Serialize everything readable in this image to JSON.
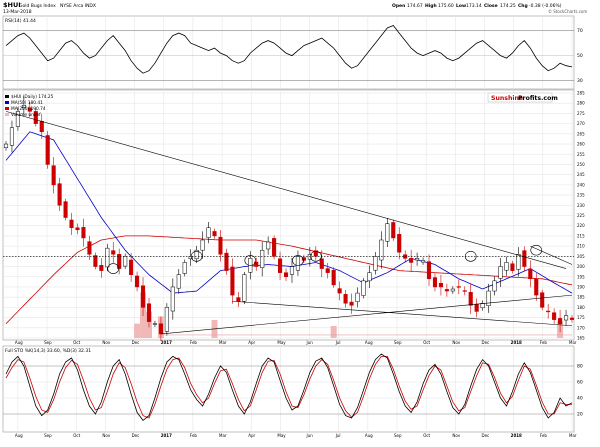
{
  "header": {
    "symbol": "$HUI",
    "name": "Gold Bugs Index",
    "exchange": "NYSE Arca INDX",
    "date": "13-Mar-2018",
    "ohlc": {
      "open_label": "Open",
      "open": "174.67",
      "high_label": "High",
      "high": "175.60",
      "low_label": "Low",
      "low": "173.14",
      "close_label": "Close",
      "close": "174.25",
      "chg_label": "Chg",
      "chg": "-0.38 (-0.06%)"
    },
    "copyright": "© StockCharts.com"
  },
  "watermark": {
    "part1": "Sunshine",
    "part2": "Profits.com"
  },
  "legend": {
    "main": "$HUI (Daily) 174.25",
    "ma1": "MA(50) 180.41",
    "ma2": "MA(200) 190.74",
    "vol": "Volume undef"
  },
  "rsi_panel": {
    "label": "RSI(14) 41.44",
    "scale": [
      "70",
      "50",
      "30"
    ]
  },
  "stoch_panel": {
    "label": "Full STO %K(14,3) 33.60, %D(3) 32.31",
    "scale": [
      "80",
      "60",
      "40",
      "20"
    ]
  },
  "x_axis": [
    "Aug",
    "Sep",
    "Oct",
    "Nov",
    "Dec",
    "2017",
    "Feb",
    "Mar",
    "Apr",
    "May",
    "Jun",
    "Jul",
    "Aug",
    "Sep",
    "Oct",
    "Nov",
    "Dec",
    "2018",
    "Feb",
    "Mar"
  ],
  "bold_ticks": [
    "2017",
    "2018"
  ],
  "colors": {
    "up": "#000000",
    "down": "#cc0000",
    "ma50": "#0000cc",
    "ma200": "#cc0000",
    "trendline": "#000000",
    "ellipse": "#000000",
    "volume": "#f2b8b8",
    "sto_k": "#000000",
    "sto_d": "#cc0000",
    "grid": "#e6e6e6",
    "support": "#e0a0a0"
  },
  "chart_data": [
    {
      "type": "candlestick",
      "title": "$HUI Gold Bugs Index NYSE Arca INDX",
      "ylim": [
        165,
        285
      ],
      "yticks": [
        "285",
        "280",
        "275",
        "270",
        "265",
        "260",
        "255",
        "250",
        "245",
        "240",
        "235",
        "230",
        "225",
        "220",
        "215",
        "210",
        "205",
        "200",
        "195",
        "190",
        "185",
        "180",
        "175",
        "170",
        "165"
      ],
      "x_labels": [
        "Aug",
        "Sep",
        "Oct",
        "Nov",
        "Dec",
        "2017",
        "Feb",
        "Mar",
        "Apr",
        "May",
        "Jun",
        "Jul",
        "Aug",
        "Sep",
        "Oct",
        "Nov",
        "Dec",
        "2018",
        "Feb",
        "Mar"
      ],
      "close_path": [
        [
          0,
          260
        ],
        [
          2,
          276
        ],
        [
          3,
          279
        ],
        [
          4,
          276
        ],
        [
          5,
          270
        ],
        [
          6,
          266
        ],
        [
          7,
          250
        ],
        [
          8,
          240
        ],
        [
          9,
          230
        ],
        [
          10,
          224
        ],
        [
          11,
          219
        ],
        [
          12,
          218
        ],
        [
          13,
          214
        ],
        [
          14,
          206
        ],
        [
          15,
          200
        ],
        [
          16,
          198
        ],
        [
          17,
          209
        ],
        [
          18,
          206
        ],
        [
          19,
          199
        ],
        [
          20,
          205
        ],
        [
          21,
          196
        ],
        [
          22,
          190
        ],
        [
          23,
          180
        ],
        [
          24,
          173
        ],
        [
          25,
          172
        ],
        [
          26,
          167
        ],
        [
          27,
          180
        ],
        [
          28,
          190
        ],
        [
          29,
          196
        ],
        [
          30,
          202
        ],
        [
          31,
          205
        ],
        [
          32,
          208
        ],
        [
          33,
          213
        ],
        [
          34,
          219
        ],
        [
          35,
          215
        ],
        [
          36,
          206
        ],
        [
          37,
          198
        ],
        [
          38,
          186
        ],
        [
          39,
          183
        ],
        [
          40,
          196
        ],
        [
          41,
          204
        ],
        [
          42,
          200
        ],
        [
          43,
          208
        ],
        [
          44,
          212
        ],
        [
          45,
          205
        ],
        [
          46,
          197
        ],
        [
          47,
          195
        ],
        [
          48,
          200
        ],
        [
          49,
          205
        ],
        [
          50,
          203
        ],
        [
          51,
          206
        ],
        [
          52,
          205
        ],
        [
          53,
          199
        ],
        [
          54,
          197
        ],
        [
          55,
          191
        ],
        [
          56,
          187
        ],
        [
          57,
          182
        ],
        [
          58,
          181
        ],
        [
          59,
          187
        ],
        [
          60,
          193
        ],
        [
          61,
          197
        ],
        [
          62,
          205
        ],
        [
          63,
          213
        ],
        [
          64,
          221
        ],
        [
          65,
          214
        ],
        [
          66,
          207
        ],
        [
          67,
          204
        ],
        [
          68,
          202
        ],
        [
          69,
          204
        ],
        [
          70,
          203
        ],
        [
          71,
          194
        ],
        [
          72,
          190
        ],
        [
          73,
          190
        ],
        [
          74,
          188
        ],
        [
          75,
          189
        ],
        [
          76,
          190
        ],
        [
          77,
          188
        ],
        [
          78,
          181
        ],
        [
          79,
          178
        ],
        [
          80,
          182
        ],
        [
          81,
          188
        ],
        [
          82,
          193
        ],
        [
          83,
          200
        ],
        [
          84,
          202
        ],
        [
          85,
          198
        ],
        [
          86,
          206
        ],
        [
          87,
          200
        ],
        [
          88,
          194
        ],
        [
          89,
          186
        ],
        [
          90,
          180
        ],
        [
          91,
          178
        ],
        [
          92,
          174
        ],
        [
          93,
          172
        ],
        [
          94,
          176
        ],
        [
          95,
          174
        ]
      ],
      "ma50": [
        [
          0,
          252
        ],
        [
          4,
          266
        ],
        [
          8,
          262
        ],
        [
          12,
          243
        ],
        [
          16,
          224
        ],
        [
          20,
          208
        ],
        [
          24,
          196
        ],
        [
          28,
          187
        ],
        [
          32,
          188
        ],
        [
          36,
          198
        ],
        [
          40,
          200
        ],
        [
          44,
          201
        ],
        [
          48,
          200
        ],
        [
          52,
          202
        ],
        [
          56,
          198
        ],
        [
          60,
          192
        ],
        [
          64,
          197
        ],
        [
          68,
          204
        ],
        [
          72,
          201
        ],
        [
          76,
          194
        ],
        [
          80,
          189
        ],
        [
          84,
          194
        ],
        [
          88,
          199
        ],
        [
          92,
          192
        ],
        [
          95,
          187
        ]
      ],
      "ma200": [
        [
          0,
          172
        ],
        [
          8,
          196
        ],
        [
          12,
          207
        ],
        [
          16,
          213
        ],
        [
          20,
          215
        ],
        [
          24,
          215
        ],
        [
          30,
          214
        ],
        [
          36,
          213
        ],
        [
          42,
          213
        ],
        [
          48,
          210
        ],
        [
          54,
          206
        ],
        [
          60,
          202
        ],
        [
          66,
          198
        ],
        [
          72,
          197
        ],
        [
          78,
          196
        ],
        [
          84,
          195
        ],
        [
          90,
          194
        ],
        [
          95,
          191
        ]
      ],
      "volume_spikes": [
        [
          22,
          12
        ],
        [
          23,
          38
        ],
        [
          24,
          22
        ],
        [
          26,
          18
        ],
        [
          35,
          15
        ],
        [
          55,
          10
        ],
        [
          93,
          14
        ]
      ],
      "trendlines": [
        {
          "from": [
            0,
            276
          ],
          "to": [
            94,
            199
          ]
        },
        {
          "from": [
            26,
            167
          ],
          "to": [
            95,
            186
          ]
        },
        {
          "from": [
            38,
            183
          ],
          "to": [
            95,
            171
          ]
        },
        {
          "from": [
            88,
            210
          ],
          "to": [
            95,
            201
          ]
        }
      ],
      "hlines": [
        {
          "y": 205,
          "style": "dotted"
        },
        {
          "y": 166.5,
          "style": "support"
        }
      ],
      "ellipses": [
        [
          18,
          199
        ],
        [
          32,
          205
        ],
        [
          41,
          203
        ],
        [
          49,
          203
        ],
        [
          52,
          205
        ],
        [
          78,
          205
        ],
        [
          89,
          208
        ]
      ]
    },
    {
      "type": "line",
      "title": "RSI(14) 41.44",
      "ylim": [
        25,
        80
      ],
      "yticks": [
        "70",
        "50",
        "30"
      ],
      "series": [
        {
          "name": "RSI(14)",
          "values": [
            58,
            62,
            66,
            68,
            64,
            58,
            52,
            46,
            48,
            54,
            60,
            62,
            58,
            52,
            48,
            50,
            56,
            62,
            66,
            60,
            54,
            46,
            40,
            36,
            38,
            44,
            52,
            60,
            66,
            68,
            66,
            60,
            58,
            56,
            54,
            56,
            52,
            50,
            46,
            44,
            46,
            52,
            56,
            60,
            62,
            60,
            56,
            52,
            50,
            54,
            58,
            60,
            62,
            64,
            60,
            56,
            50,
            44,
            40,
            42,
            48,
            54,
            60,
            66,
            72,
            74,
            68,
            62,
            56,
            52,
            50,
            52,
            54,
            52,
            48,
            46,
            48,
            52,
            56,
            60,
            62,
            58,
            54,
            50,
            48,
            52,
            58,
            62,
            56,
            48,
            42,
            38,
            40,
            44,
            42,
            41
          ]
        }
      ]
    },
    {
      "type": "line",
      "title": "Full STO %K(14,3) 33.60, %D(3) 32.31",
      "ylim": [
        0,
        100
      ],
      "yticks": [
        "80",
        "60",
        "40",
        "20"
      ],
      "series": [
        {
          "name": "%K(14,3)",
          "values": [
            70,
            85,
            92,
            80,
            55,
            30,
            18,
            25,
            45,
            70,
            85,
            90,
            75,
            50,
            30,
            20,
            35,
            60,
            80,
            88,
            70,
            45,
            22,
            12,
            18,
            40,
            65,
            85,
            92,
            88,
            70,
            50,
            38,
            30,
            45,
            65,
            80,
            72,
            50,
            30,
            20,
            35,
            58,
            80,
            90,
            85,
            62,
            40,
            25,
            30,
            50,
            72,
            86,
            90,
            78,
            55,
            32,
            18,
            15,
            28,
            50,
            72,
            88,
            95,
            90,
            70,
            48,
            30,
            22,
            35,
            58,
            75,
            82,
            70,
            48,
            28,
            20,
            32,
            55,
            76,
            88,
            80,
            60,
            40,
            30,
            48,
            70,
            84,
            72,
            50,
            28,
            15,
            22,
            40,
            30,
            34
          ]
        },
        {
          "name": "%D(3)",
          "values": [
            65,
            78,
            88,
            85,
            65,
            42,
            25,
            22,
            38,
            60,
            78,
            87,
            82,
            62,
            40,
            25,
            28,
            48,
            70,
            84,
            78,
            58,
            35,
            18,
            15,
            32,
            55,
            76,
            88,
            90,
            78,
            58,
            44,
            34,
            40,
            58,
            74,
            76,
            58,
            38,
            24,
            30,
            50,
            72,
            86,
            87,
            70,
            48,
            30,
            28,
            44,
            64,
            80,
            88,
            82,
            62,
            40,
            24,
            16,
            22,
            42,
            64,
            82,
            92,
            92,
            76,
            55,
            36,
            26,
            30,
            50,
            68,
            80,
            75,
            55,
            35,
            24,
            28,
            48,
            68,
            84,
            82,
            66,
            46,
            34,
            42,
            62,
            80,
            76,
            56,
            35,
            20,
            20,
            34,
            32,
            32
          ]
        }
      ]
    }
  ]
}
